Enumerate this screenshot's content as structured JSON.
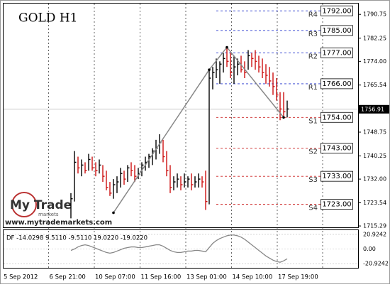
{
  "chart_data": {
    "type": "ohlc",
    "title": "GOLD H1",
    "watermark": {
      "brand": "My Trade",
      "sub": "markets",
      "url": "www.mytrademarkets.com"
    },
    "high": [
      1727,
      1742,
      1740,
      1739,
      1738,
      1741,
      1740,
      1738,
      1739,
      1737,
      1735,
      1731,
      1732,
      1733,
      1736,
      1735,
      1737,
      1738,
      1737,
      1736,
      1738,
      1740,
      1741,
      1743,
      1746,
      1748,
      1746,
      1742,
      1737,
      1733,
      1734,
      1733,
      1734,
      1733,
      1734,
      1733,
      1734,
      1733,
      1735,
      1771,
      1772,
      1775,
      1774,
      1777,
      1779,
      1777,
      1776,
      1775,
      1776,
      1774,
      1778,
      1777,
      1778,
      1776,
      1775,
      1773,
      1772,
      1770,
      1768,
      1763,
      1763,
      1760
    ],
    "low": [
      1718,
      1724,
      1734,
      1733,
      1734,
      1735,
      1735,
      1733,
      1734,
      1731,
      1728,
      1726,
      1725,
      1727,
      1729,
      1730,
      1731,
      1733,
      1731,
      1732,
      1733,
      1735,
      1736,
      1737,
      1739,
      1741,
      1738,
      1733,
      1727,
      1728,
      1729,
      1728,
      1729,
      1729,
      1728,
      1729,
      1729,
      1729,
      1721,
      1723,
      1764,
      1768,
      1766,
      1770,
      1772,
      1768,
      1766,
      1769,
      1770,
      1768,
      1771,
      1772,
      1771,
      1770,
      1768,
      1766,
      1765,
      1762,
      1760,
      1753,
      1754,
      1754
    ],
    "close": [
      1725,
      1738,
      1736,
      1737,
      1735,
      1739,
      1736,
      1735,
      1737,
      1733,
      1729,
      1727,
      1730,
      1731,
      1734,
      1732,
      1736,
      1735,
      1733,
      1734,
      1737,
      1738,
      1740,
      1742,
      1743,
      1745,
      1740,
      1735,
      1729,
      1731,
      1732,
      1730,
      1731,
      1732,
      1730,
      1731,
      1732,
      1731,
      1724,
      1768,
      1770,
      1771,
      1773,
      1775,
      1774,
      1770,
      1772,
      1773,
      1771,
      1770,
      1776,
      1775,
      1774,
      1772,
      1770,
      1769,
      1767,
      1765,
      1762,
      1757,
      1756,
      1757
    ],
    "zigzag": {
      "x": [
        12,
        39,
        44,
        60
      ],
      "values": [
        1720,
        1771,
        1779,
        1754
      ]
    },
    "last_price": {
      "value": 1756.91,
      "label": "1756.91"
    },
    "levels": [
      {
        "name": "R4",
        "value": 1792,
        "label": "1792.00",
        "color": "#2233cc"
      },
      {
        "name": "R3",
        "value": 1785,
        "label": "1785.00",
        "color": "#2233cc"
      },
      {
        "name": "R2",
        "value": 1777,
        "label": "1777.00",
        "color": "#2233cc"
      },
      {
        "name": "R1",
        "value": 1766,
        "label": "1766.00",
        "color": "#2233cc"
      },
      {
        "name": "S1",
        "value": 1754,
        "label": "1754.00",
        "color": "#cc2222"
      },
      {
        "name": "S2",
        "value": 1743,
        "label": "1743.00",
        "color": "#cc2222"
      },
      {
        "name": "S3",
        "value": 1733,
        "label": "1733.00",
        "color": "#cc2222"
      },
      {
        "name": "S4",
        "value": 1723,
        "label": "1723.00",
        "color": "#cc2222"
      }
    ],
    "ylim": [
      1714.8,
      1794.6
    ],
    "yticks": [
      1790.75,
      1782.25,
      {
        "value": 1774,
        "label": "1774.00"
      },
      1765.54,
      1748.75,
      1740.25,
      {
        "value": 1732,
        "label": "1732.00"
      },
      1723.54,
      1715.29
    ],
    "x_axis_labels": [
      "5 Sep 2012",
      "6 Sep 21:00",
      "10 Sep 07:00",
      "11 Sep 16:00",
      "13 Sep 01:00",
      "14 Sep 10:00",
      "17 Sep 19:00"
    ],
    "indicator": {
      "label": "DF -14.0298 9.5110 -9.5110 19.0220 -19.0220",
      "values": [
        -2,
        0,
        3,
        5,
        6,
        5,
        3,
        1,
        -1,
        -3,
        -5,
        -6,
        -5,
        -3,
        -1,
        1,
        2,
        3,
        3,
        2,
        2,
        3,
        4,
        5,
        6,
        6,
        4,
        1,
        -2,
        -4,
        -5,
        -5,
        -4,
        -3,
        -3,
        -2,
        -2,
        -3,
        -4,
        2,
        8,
        12,
        15,
        17,
        19,
        20,
        20,
        19,
        17,
        14,
        10,
        6,
        2,
        -2,
        -6,
        -10,
        -13,
        -16,
        -18,
        -19,
        -17,
        -14.0298
      ],
      "ylim": [
        -27,
        27
      ],
      "yticks": [
        20.9242,
        {
          "value": 0,
          "label": "0.00"
        },
        -20.9242
      ]
    }
  }
}
